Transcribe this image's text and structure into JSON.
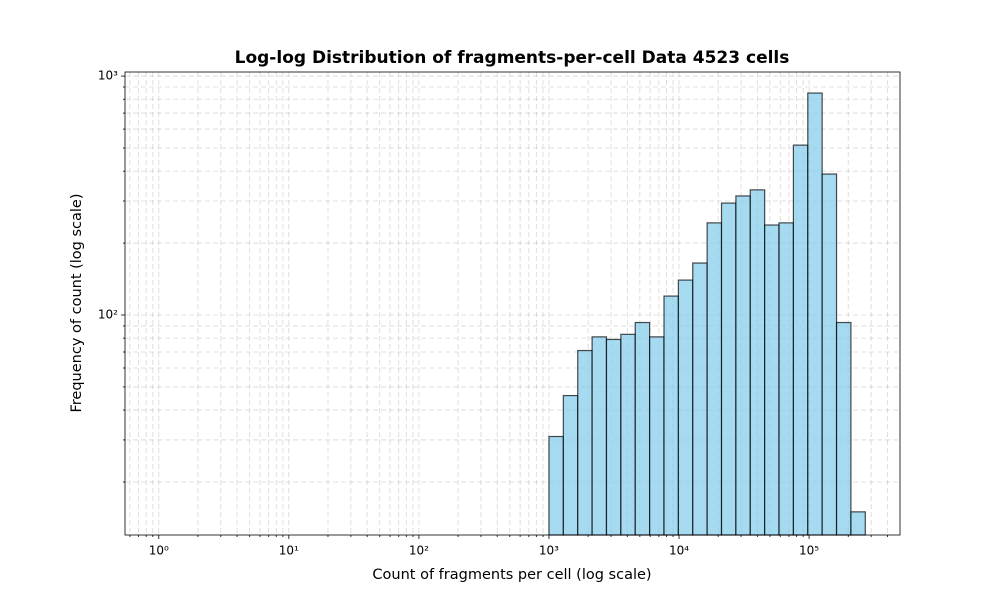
{
  "chart_data": {
    "type": "histogram",
    "title": "Log-log Distribution of fragments-per-cell Data 4523 cells",
    "xlabel": "Count of fragments per cell (log scale)",
    "ylabel": "Frequency of count (log scale)",
    "bins": [
      1000,
      1290,
      1664,
      2146,
      2768,
      3571,
      4606,
      5941,
      7664,
      9885,
      12751,
      16447,
      21215,
      27365,
      35297,
      45530,
      58728,
      75753,
      97713,
      126040,
      162578,
      209707,
      270500
    ],
    "values": [
      31,
      46,
      71,
      81,
      79,
      83,
      93,
      81,
      120,
      140,
      165,
      243,
      294,
      315,
      334,
      238,
      243,
      514,
      849,
      389,
      93,
      15
    ],
    "color": "#87ceeb",
    "edgecolor": "#000000",
    "xscale": "log",
    "yscale": "log",
    "xlim": [
      0.55,
      500000
    ],
    "ylim": [
      12,
      1040
    ],
    "xticks": [
      {
        "value": 1,
        "label": "10⁰"
      },
      {
        "value": 10,
        "label": "10¹"
      },
      {
        "value": 100,
        "label": "10²"
      },
      {
        "value": 1000,
        "label": "10³"
      },
      {
        "value": 10000,
        "label": "10⁴"
      },
      {
        "value": 100000,
        "label": "10⁵"
      }
    ],
    "yticks": [
      {
        "value": 100,
        "label": "10²"
      },
      {
        "value": 1000,
        "label": "10³"
      }
    ],
    "xminorticks": [
      0.6,
      0.7,
      0.8,
      0.9,
      2,
      3,
      4,
      5,
      6,
      7,
      8,
      9,
      20,
      30,
      40,
      50,
      60,
      70,
      80,
      90,
      200,
      300,
      400,
      500,
      600,
      700,
      800,
      900,
      2000,
      3000,
      4000,
      5000,
      6000,
      7000,
      8000,
      9000,
      20000,
      30000,
      40000,
      50000,
      60000,
      70000,
      80000,
      90000,
      200000,
      300000,
      400000
    ],
    "yminorticks": [
      20,
      30,
      40,
      50,
      60,
      70,
      80,
      90,
      200,
      300,
      400,
      500,
      600,
      700,
      800,
      900
    ],
    "grid": true
  }
}
